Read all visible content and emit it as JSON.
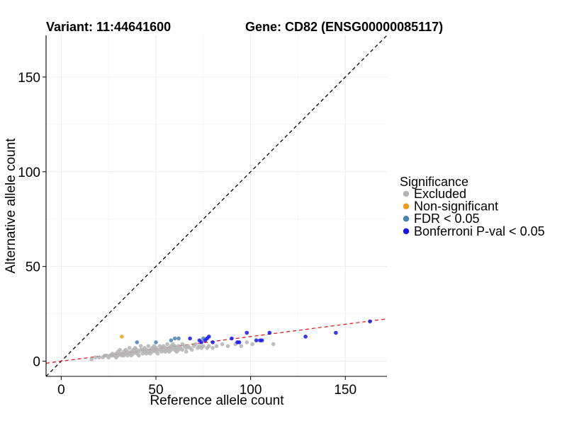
{
  "chart_data": {
    "type": "scatter",
    "title_left": "Variant: 11:44641600",
    "title_right": "Gene: CD82 (ENSG00000085117)",
    "xlabel": "Reference allele count",
    "ylabel": "Alternative allele count",
    "xlim": [
      -8,
      172
    ],
    "ylim": [
      -8,
      172
    ],
    "xticks": [
      0,
      50,
      100,
      150
    ],
    "yticks": [
      0,
      50,
      100,
      150
    ],
    "xtick_labels": [
      "0",
      "50",
      "100",
      "150"
    ],
    "ytick_labels": [
      "0",
      "50",
      "100",
      "150"
    ],
    "grid": true,
    "reference_lines": [
      {
        "name": "identity",
        "slope": 1,
        "intercept": 0,
        "color": "#000000",
        "dash": "dashed"
      },
      {
        "name": "fit",
        "slope": 0.13,
        "intercept": 0,
        "color": "#e41a1c",
        "dash": "dashed"
      }
    ],
    "legend": {
      "title": "Significance",
      "position": "right",
      "entries": [
        {
          "label": "Excluded",
          "color": "#b3b3b3"
        },
        {
          "label": "Non-significant",
          "color": "#f39c12"
        },
        {
          "label": "FDR < 0.05",
          "color": "#4682b4"
        },
        {
          "label": "Bonferroni P-val < 0.05",
          "color": "#1414f0"
        }
      ]
    },
    "series": [
      {
        "name": "Excluded",
        "color": "#b3b3b3",
        "x": [
          16,
          18,
          20,
          22,
          23,
          24,
          25,
          26,
          27,
          27,
          28,
          29,
          29,
          30,
          30,
          31,
          31,
          32,
          32,
          33,
          33,
          34,
          34,
          35,
          35,
          36,
          36,
          37,
          37,
          38,
          38,
          39,
          39,
          40,
          40,
          41,
          41,
          42,
          42,
          43,
          43,
          44,
          44,
          45,
          45,
          46,
          46,
          47,
          47,
          48,
          48,
          49,
          49,
          50,
          50,
          51,
          51,
          52,
          52,
          53,
          53,
          54,
          54,
          55,
          55,
          56,
          56,
          57,
          57,
          58,
          58,
          59,
          59,
          60,
          60,
          61,
          61,
          62,
          62,
          63,
          64,
          64,
          65,
          66,
          66,
          67,
          68,
          69,
          70,
          71,
          72,
          73,
          74,
          75,
          77,
          78,
          80,
          82,
          85,
          88,
          92,
          95,
          98,
          101,
          112
        ],
        "y": [
          1,
          2,
          2,
          2,
          3,
          3,
          2,
          3,
          4,
          3,
          3,
          4,
          2,
          3,
          5,
          4,
          6,
          3,
          4,
          5,
          3,
          4,
          6,
          3,
          5,
          4,
          7,
          5,
          3,
          4,
          6,
          5,
          7,
          4,
          6,
          5,
          3,
          6,
          8,
          4,
          6,
          5,
          7,
          4,
          6,
          5,
          8,
          6,
          4,
          7,
          5,
          6,
          8,
          5,
          7,
          6,
          4,
          8,
          6,
          5,
          7,
          6,
          8,
          5,
          7,
          6,
          9,
          7,
          5,
          8,
          6,
          7,
          9,
          6,
          8,
          7,
          5,
          8,
          6,
          7,
          9,
          6,
          8,
          7,
          5,
          8,
          7,
          6,
          8,
          9,
          7,
          8,
          7,
          8,
          7,
          8,
          7,
          8,
          9,
          8,
          9,
          8,
          10,
          9,
          9
        ]
      },
      {
        "name": "Non-significant",
        "color": "#f39c12",
        "x": [
          32
        ],
        "y": [
          13
        ]
      },
      {
        "name": "FDR < 0.05",
        "color": "#4682b4",
        "x": [
          40,
          50,
          58,
          60,
          62,
          75
        ],
        "y": [
          10,
          10,
          11,
          12,
          12,
          12
        ]
      },
      {
        "name": "Bonferroni P-val < 0.05",
        "color": "#1414f0",
        "x": [
          68,
          73,
          74,
          76,
          77,
          78,
          80,
          90,
          93,
          94,
          98,
          103,
          105,
          106,
          110,
          129,
          145,
          163
        ],
        "y": [
          12,
          11,
          10,
          11,
          12,
          13,
          10,
          12,
          10,
          10,
          15,
          11,
          11,
          11,
          15,
          13,
          15,
          21
        ]
      }
    ]
  }
}
